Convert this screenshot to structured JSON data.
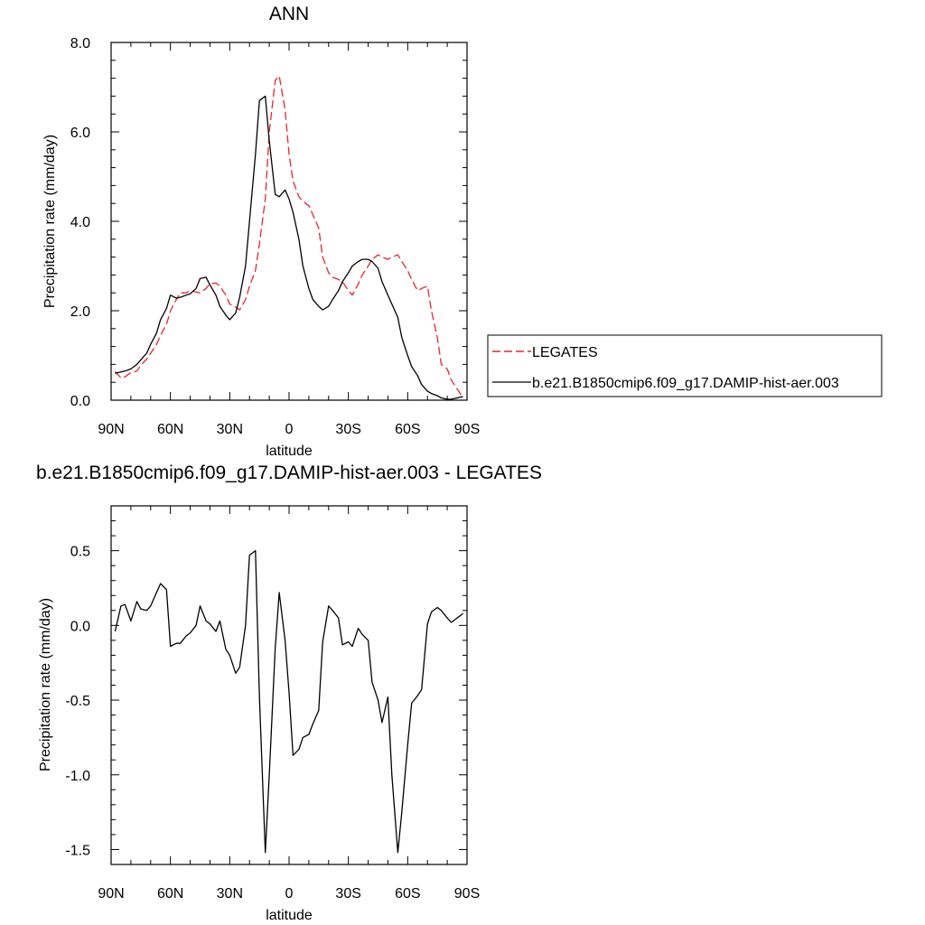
{
  "chart_data": [
    {
      "type": "line",
      "title": "ANN",
      "xlabel": "latitude",
      "ylabel": "Precipitation rate (mm/day)",
      "xlim": [
        90,
        -90
      ],
      "ylim": [
        0,
        8
      ],
      "xticks": [
        {
          "value": 90,
          "label": "90N"
        },
        {
          "value": 60,
          "label": "60N"
        },
        {
          "value": 30,
          "label": "30N"
        },
        {
          "value": 0,
          "label": "0"
        },
        {
          "value": -30,
          "label": "30S"
        },
        {
          "value": -60,
          "label": "60S"
        },
        {
          "value": -90,
          "label": "90S"
        }
      ],
      "yticks": [
        {
          "value": 0,
          "label": "0.0"
        },
        {
          "value": 2,
          "label": "2.0"
        },
        {
          "value": 4,
          "label": "4.0"
        },
        {
          "value": 6,
          "label": "6.0"
        },
        {
          "value": 8,
          "label": "8.0"
        }
      ],
      "grid": false,
      "legend_position": "right",
      "series": [
        {
          "name": "LEGATES",
          "color": "#e8262a",
          "dash": true,
          "x": [
            88,
            85,
            83,
            80,
            77,
            75,
            72,
            70,
            67,
            65,
            62,
            60,
            57,
            55,
            52,
            50,
            47,
            45,
            42,
            40,
            37,
            35,
            32,
            30,
            27,
            25,
            22,
            20,
            17,
            15,
            12,
            10,
            7,
            5,
            2,
            0,
            -2,
            -5,
            -7,
            -10,
            -12,
            -15,
            -17,
            -20,
            -22,
            -25,
            -27,
            -30,
            -32,
            -35,
            -37,
            -40,
            -42,
            -45,
            -47,
            -50,
            -52,
            -55,
            -57,
            -60,
            -62,
            -65,
            -67,
            -70,
            -72,
            -75,
            -77,
            -80,
            -82,
            -85,
            -88
          ],
          "y": [
            0.64,
            0.5,
            0.52,
            0.62,
            0.65,
            0.78,
            0.92,
            1.05,
            1.25,
            1.45,
            1.7,
            2.0,
            2.25,
            2.4,
            2.4,
            2.45,
            2.42,
            2.4,
            2.5,
            2.6,
            2.62,
            2.55,
            2.35,
            2.15,
            2.08,
            2.02,
            2.25,
            2.55,
            2.9,
            3.5,
            4.5,
            6.0,
            7.15,
            7.25,
            6.5,
            5.5,
            4.9,
            4.55,
            4.45,
            4.35,
            4.15,
            3.85,
            3.2,
            2.85,
            2.75,
            2.7,
            2.65,
            2.45,
            2.35,
            2.6,
            2.8,
            3.0,
            3.15,
            3.25,
            3.2,
            3.15,
            3.2,
            3.25,
            3.1,
            2.9,
            2.7,
            2.45,
            2.5,
            2.55,
            2.0,
            1.4,
            0.8,
            0.7,
            0.45,
            0.25,
            0.05
          ]
        },
        {
          "name": "b.e21.B1850cmip6.f09_g17.DAMIP-hist-aer.003",
          "color": "#000000",
          "dash": false,
          "x": [
            88,
            85,
            83,
            80,
            77,
            75,
            72,
            70,
            67,
            65,
            62,
            60,
            57,
            55,
            52,
            50,
            47,
            45,
            42,
            40,
            37,
            35,
            32,
            30,
            27,
            25,
            22,
            20,
            17,
            15,
            12,
            10,
            7,
            5,
            2,
            0,
            -2,
            -5,
            -7,
            -10,
            -12,
            -15,
            -17,
            -20,
            -22,
            -25,
            -27,
            -30,
            -32,
            -35,
            -37,
            -40,
            -42,
            -45,
            -47,
            -50,
            -52,
            -55,
            -57,
            -60,
            -62,
            -65,
            -67,
            -70,
            -72,
            -75,
            -77,
            -80,
            -82,
            -85,
            -88
          ],
          "y": [
            0.6,
            0.63,
            0.65,
            0.7,
            0.8,
            0.9,
            1.05,
            1.25,
            1.5,
            1.8,
            2.05,
            2.35,
            2.28,
            2.3,
            2.35,
            2.38,
            2.5,
            2.72,
            2.75,
            2.58,
            2.35,
            2.1,
            1.9,
            1.8,
            1.95,
            2.3,
            3.0,
            4.0,
            5.5,
            6.7,
            6.8,
            5.8,
            4.6,
            4.55,
            4.7,
            4.5,
            4.2,
            3.6,
            3.0,
            2.5,
            2.25,
            2.1,
            2.02,
            2.1,
            2.25,
            2.45,
            2.65,
            2.85,
            3.0,
            3.1,
            3.15,
            3.15,
            3.1,
            2.95,
            2.65,
            2.35,
            2.15,
            1.85,
            1.4,
            1.0,
            0.75,
            0.55,
            0.35,
            0.2,
            0.15,
            0.1,
            0.05,
            0.02,
            0.02,
            0.05,
            0.08
          ]
        }
      ]
    },
    {
      "type": "line",
      "title": "b.e21.B1850cmip6.f09_g17.DAMIP-hist-aer.003 - LEGATES",
      "xlabel": "latitude",
      "ylabel": "Precipitation rate (mm/day)",
      "xlim": [
        90,
        -90
      ],
      "ylim": [
        -1.6,
        0.8
      ],
      "xticks": [
        {
          "value": 90,
          "label": "90N"
        },
        {
          "value": 60,
          "label": "60N"
        },
        {
          "value": 30,
          "label": "30N"
        },
        {
          "value": 0,
          "label": "0"
        },
        {
          "value": -30,
          "label": "30S"
        },
        {
          "value": -60,
          "label": "60S"
        },
        {
          "value": -90,
          "label": "90S"
        }
      ],
      "yticks": [
        {
          "value": 0.5,
          "label": "0.5"
        },
        {
          "value": 0,
          "label": "0.0"
        },
        {
          "value": -0.5,
          "label": "-0.5"
        },
        {
          "value": -1,
          "label": "-1.0"
        },
        {
          "value": -1.5,
          "label": "-1.5"
        }
      ],
      "grid": false,
      "series": [
        {
          "color": "#000000",
          "dash": false,
          "x": [
            88,
            85,
            83,
            80,
            77,
            75,
            72,
            70,
            67,
            65,
            62,
            60,
            57,
            55,
            52,
            50,
            47,
            45,
            42,
            40,
            37,
            35,
            32,
            30,
            27,
            25,
            22,
            20,
            17,
            15,
            12,
            10,
            7,
            5,
            2,
            0,
            -2,
            -5,
            -7,
            -10,
            -12,
            -15,
            -17,
            -20,
            -22,
            -25,
            -27,
            -30,
            -32,
            -35,
            -37,
            -40,
            -42,
            -45,
            -47,
            -50,
            -52,
            -55,
            -57,
            -60,
            -62,
            -65,
            -67,
            -70,
            -72,
            -75,
            -77,
            -80,
            -82,
            -85,
            -88
          ],
          "y": [
            -0.04,
            0.13,
            0.14,
            0.03,
            0.16,
            0.11,
            0.1,
            0.13,
            0.22,
            0.28,
            0.24,
            -0.14,
            -0.12,
            -0.12,
            -0.07,
            -0.05,
            0.0,
            0.13,
            0.03,
            0.01,
            -0.04,
            0.03,
            -0.16,
            -0.2,
            -0.32,
            -0.28,
            0.0,
            0.47,
            0.5,
            -0.48,
            -1.52,
            -1.0,
            -0.15,
            0.22,
            -0.1,
            -0.45,
            -0.87,
            -0.83,
            -0.75,
            -0.73,
            -0.66,
            -0.57,
            -0.11,
            0.13,
            0.1,
            0.05,
            -0.13,
            -0.11,
            -0.14,
            -0.02,
            -0.06,
            -0.1,
            -0.38,
            -0.5,
            -0.65,
            -0.48,
            -1.0,
            -1.52,
            -1.25,
            -0.8,
            -0.52,
            -0.47,
            -0.43,
            0.01,
            0.09,
            0.12,
            0.1,
            0.05,
            0.02,
            0.05,
            0.08
          ]
        }
      ]
    }
  ]
}
